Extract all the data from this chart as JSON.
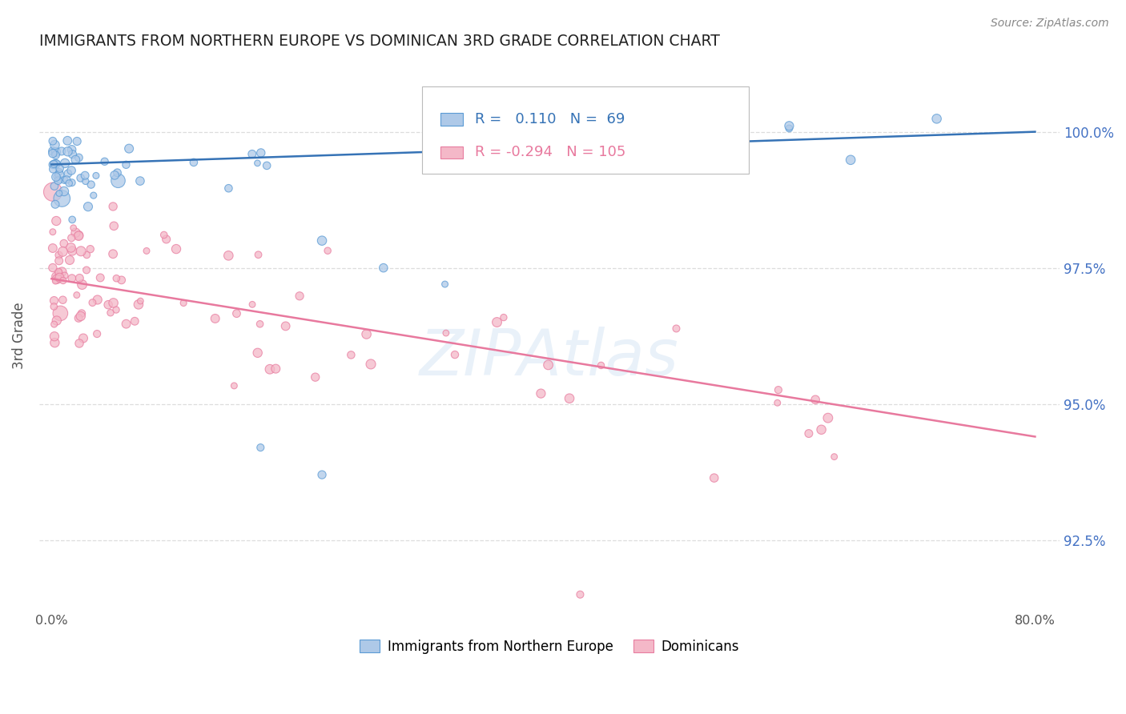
{
  "title": "IMMIGRANTS FROM NORTHERN EUROPE VS DOMINICAN 3RD GRADE CORRELATION CHART",
  "source": "Source: ZipAtlas.com",
  "ylabel": "3rd Grade",
  "y_ticks": [
    92.5,
    95.0,
    97.5,
    100.0
  ],
  "y_tick_labels": [
    "92.5%",
    "95.0%",
    "97.5%",
    "100.0%"
  ],
  "blue_R": 0.11,
  "blue_N": 69,
  "pink_R": -0.294,
  "pink_N": 105,
  "blue_fill_color": "#aec9e8",
  "pink_fill_color": "#f4b8c8",
  "blue_edge_color": "#5b9bd5",
  "pink_edge_color": "#e87da0",
  "blue_line_color": "#3673b6",
  "pink_line_color": "#e8799e",
  "legend_blue_label": "Immigrants from Northern Europe",
  "legend_pink_label": "Dominicans",
  "blue_line_x": [
    0.0,
    0.8
  ],
  "blue_line_y": [
    99.4,
    100.0
  ],
  "pink_line_x": [
    0.0,
    0.8
  ],
  "pink_line_y": [
    97.3,
    94.4
  ],
  "xlim": [
    -0.01,
    0.82
  ],
  "ylim": [
    91.2,
    101.3
  ],
  "marker_size": 55,
  "background_color": "#ffffff",
  "grid_color": "#dddddd",
  "watermark_color": "#c8ddf0",
  "watermark_alpha": 0.4,
  "right_tick_color": "#4472c4",
  "title_fontsize": 13.5,
  "source_fontsize": 10
}
